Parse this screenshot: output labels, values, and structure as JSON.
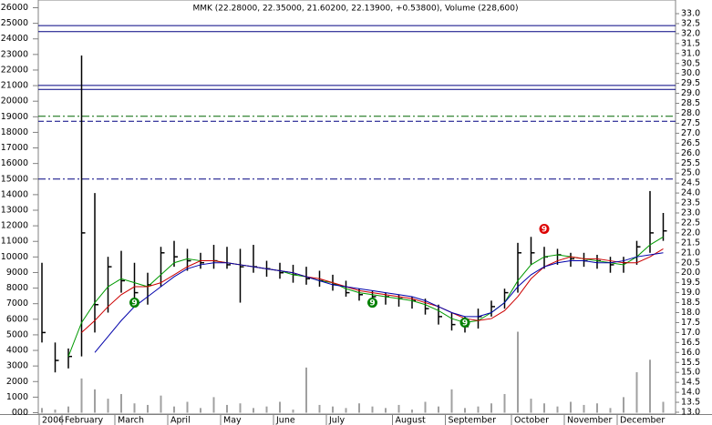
{
  "chart_data": {
    "type": "ohlc",
    "title": "MMK (22.28000, 22.35000, 21.60200, 22.13900, +0.53800), Volume (228,600)",
    "categories": [
      "2006",
      null,
      "February",
      null,
      null,
      null,
      "March",
      null,
      null,
      null,
      "April",
      null,
      null,
      null,
      "May",
      null,
      null,
      null,
      "June",
      null,
      null,
      null,
      "July",
      null,
      null,
      null,
      null,
      "August",
      null,
      null,
      null,
      "September",
      null,
      null,
      null,
      null,
      "October",
      null,
      null,
      null,
      "November",
      null,
      null,
      null,
      "December",
      null,
      null,
      null
    ],
    "high": [
      20.5,
      16.5,
      16.2,
      30.9,
      24.0,
      20.8,
      21.1,
      20.5,
      20.0,
      21.3,
      21.6,
      21.2,
      21.0,
      21.4,
      21.3,
      21.2,
      21.4,
      20.6,
      20.5,
      20.4,
      20.3,
      20.1,
      19.9,
      19.6,
      19.2,
      19.1,
      19.0,
      18.9,
      18.8,
      18.7,
      18.4,
      18.0,
      17.8,
      18.2,
      18.6,
      19.2,
      21.5,
      21.8,
      21.3,
      21.2,
      21.0,
      21.0,
      20.9,
      20.8,
      20.8,
      21.6,
      24.1,
      23.0
    ],
    "low": [
      16.5,
      15.0,
      15.2,
      15.8,
      17.0,
      18.0,
      19.0,
      18.6,
      18.4,
      19.3,
      20.3,
      20.1,
      20.2,
      20.2,
      20.2,
      18.5,
      20.0,
      19.8,
      19.7,
      19.5,
      19.4,
      19.3,
      19.1,
      18.8,
      18.6,
      18.5,
      18.4,
      18.3,
      18.2,
      17.9,
      17.4,
      17.1,
      17.0,
      17.2,
      17.8,
      18.2,
      19.0,
      20.4,
      20.2,
      20.4,
      20.3,
      20.3,
      20.2,
      20.0,
      20.0,
      20.4,
      21.0,
      21.6
    ],
    "close": [
      17.0,
      15.6,
      15.8,
      22.0,
      18.4,
      20.3,
      19.6,
      19.0,
      19.4,
      21.0,
      20.8,
      20.6,
      20.5,
      20.6,
      20.4,
      20.3,
      20.3,
      20.2,
      20.0,
      19.9,
      19.7,
      19.6,
      19.4,
      19.0,
      18.9,
      18.8,
      18.8,
      18.7,
      18.6,
      18.2,
      17.8,
      17.4,
      17.3,
      17.8,
      18.3,
      19.0,
      21.0,
      21.0,
      20.8,
      20.9,
      20.7,
      20.6,
      20.6,
      20.4,
      20.5,
      21.3,
      22.0,
      22.1
    ],
    "bar_color": "#000000",
    "moving_averages": [
      {
        "color": "#009900",
        "values": [
          null,
          null,
          15.8,
          17.5,
          18.5,
          19.3,
          19.7,
          19.5,
          19.3,
          19.9,
          20.5,
          20.7,
          20.6,
          20.6,
          20.5,
          20.4,
          20.3,
          20.2,
          20.1,
          19.9,
          19.8,
          19.6,
          19.5,
          19.2,
          19.0,
          18.9,
          18.8,
          18.7,
          18.6,
          18.4,
          18.1,
          17.7,
          17.5,
          17.6,
          18.0,
          18.5,
          19.6,
          20.4,
          20.8,
          20.9,
          20.8,
          20.7,
          20.6,
          20.5,
          20.4,
          20.8,
          21.4,
          21.8
        ]
      },
      {
        "color": "#cc0000",
        "values": [
          null,
          null,
          null,
          17.0,
          17.6,
          18.3,
          18.9,
          19.3,
          19.3,
          19.5,
          19.9,
          20.3,
          20.6,
          20.6,
          20.5,
          20.4,
          20.3,
          20.2,
          20.1,
          20.0,
          19.8,
          19.7,
          19.5,
          19.3,
          19.1,
          19.0,
          18.9,
          18.8,
          18.7,
          18.5,
          18.3,
          18.0,
          17.7,
          17.6,
          17.7,
          18.1,
          18.8,
          19.7,
          20.3,
          20.6,
          20.8,
          20.7,
          20.7,
          20.6,
          20.5,
          20.5,
          20.8,
          21.2
        ]
      },
      {
        "color": "#0000aa",
        "values": [
          null,
          null,
          null,
          null,
          16.0,
          16.8,
          17.6,
          18.3,
          18.8,
          19.3,
          19.8,
          20.2,
          20.4,
          20.5,
          20.5,
          20.4,
          20.3,
          20.2,
          20.1,
          20.0,
          19.8,
          19.6,
          19.4,
          19.3,
          19.2,
          19.1,
          19.0,
          18.9,
          18.8,
          18.6,
          18.3,
          18.0,
          17.8,
          17.8,
          18.0,
          18.5,
          19.3,
          19.9,
          20.3,
          20.5,
          20.6,
          20.6,
          20.5,
          20.5,
          20.6,
          20.8,
          20.9,
          21.0
        ]
      }
    ],
    "volume": {
      "color": "#a0a0a0",
      "values": [
        300,
        200,
        400,
        2200,
        1500,
        900,
        1200,
        600,
        500,
        1100,
        400,
        700,
        300,
        1000,
        500,
        600,
        300,
        400,
        700,
        200,
        2900,
        500,
        400,
        300,
        600,
        400,
        300,
        500,
        200,
        700,
        400,
        1500,
        300,
        400,
        600,
        1200,
        5200,
        900,
        600,
        400,
        700,
        500,
        600,
        300,
        1000,
        2600,
        3400,
        700
      ]
    },
    "ylim": [
      0,
      26000
    ],
    "yticks": [
      {
        "value": 0,
        "label": "000"
      },
      1000,
      2000,
      3000,
      4000,
      5000,
      6000,
      7000,
      8000,
      9000,
      10000,
      11000,
      12000,
      13000,
      14000,
      15000,
      16000,
      17000,
      18000,
      19000,
      20000,
      21000,
      22000,
      23000,
      24000,
      25000,
      26000
    ],
    "y2lim": [
      13,
      33
    ],
    "y2ticks": [
      {
        "value": 13,
        "label": "13.0"
      },
      {
        "value": 13.5,
        "label": "13.5"
      },
      {
        "value": 14,
        "label": "14.0"
      },
      {
        "value": 14.5,
        "label": "14.5"
      },
      {
        "value": 15,
        "label": "15.0"
      },
      {
        "value": 15.5,
        "label": "15.5"
      },
      {
        "value": 16,
        "label": "16.0"
      },
      {
        "value": 16.5,
        "label": "16.5"
      },
      {
        "value": 17,
        "label": "17.0"
      },
      {
        "value": 17.5,
        "label": "17.5"
      },
      {
        "value": 18,
        "label": "18.0"
      },
      {
        "value": 18.5,
        "label": "18.5"
      },
      {
        "value": 19,
        "label": "19.0"
      },
      {
        "value": 19.5,
        "label": "19.5"
      },
      {
        "value": 20,
        "label": "20.0"
      },
      {
        "value": 20.5,
        "label": "20.5"
      },
      {
        "value": 21,
        "label": "21.0"
      },
      {
        "value": 21.5,
        "label": "21.5"
      },
      {
        "value": 22,
        "label": "22.0"
      },
      {
        "value": 22.5,
        "label": "22.5"
      },
      {
        "value": 23,
        "label": "23.0"
      },
      {
        "value": 23.5,
        "label": "23.5"
      },
      {
        "value": 24,
        "label": "24.0"
      },
      {
        "value": 24.5,
        "label": "24.5"
      },
      {
        "value": 25,
        "label": "25.0"
      },
      {
        "value": 25.5,
        "label": "25.5"
      },
      {
        "value": 26,
        "label": "26.0"
      },
      {
        "value": 26.5,
        "label": "26.5"
      },
      {
        "value": 27,
        "label": "27.0"
      },
      {
        "value": 27.5,
        "label": "27.5"
      },
      {
        "value": 28,
        "label": "28.0"
      },
      {
        "value": 28.5,
        "label": "28.5"
      },
      {
        "value": 29,
        "label": "29.0"
      },
      {
        "value": 29.5,
        "label": "29.5"
      },
      {
        "value": 30,
        "label": "30.0"
      },
      {
        "value": 30.5,
        "label": "30.5"
      },
      {
        "value": 31,
        "label": "31.0"
      },
      {
        "value": 31.5,
        "label": "31.5"
      },
      {
        "value": 32,
        "label": "32.0"
      },
      {
        "value": 32.5,
        "label": "32.5"
      },
      {
        "value": 33,
        "label": "33.0"
      }
    ],
    "hlines": [
      {
        "value": 32.4,
        "color": "#000080",
        "dash": "solid"
      },
      {
        "value": 32.1,
        "color": "#000080",
        "dash": "solid"
      },
      {
        "value": 29.4,
        "color": "#000080",
        "dash": "solid"
      },
      {
        "value": 29.2,
        "color": "#000080",
        "dash": "solid"
      },
      {
        "value": 27.85,
        "color": "#006600",
        "dash": "dashdot"
      },
      {
        "value": 27.6,
        "color": "#000080",
        "dash": "dashed"
      },
      {
        "value": 24.7,
        "color": "#000080",
        "dash": "dashdot"
      }
    ],
    "markers": [
      {
        "index": 7,
        "value": 18.5,
        "label": "9",
        "color": "#008000"
      },
      {
        "index": 25,
        "value": 18.5,
        "label": "9",
        "color": "#008000"
      },
      {
        "index": 32,
        "value": 17.5,
        "label": "9",
        "color": "#008000"
      },
      {
        "index": 38,
        "value": 22.2,
        "label": "9",
        "color": "#dd0000"
      }
    ]
  }
}
